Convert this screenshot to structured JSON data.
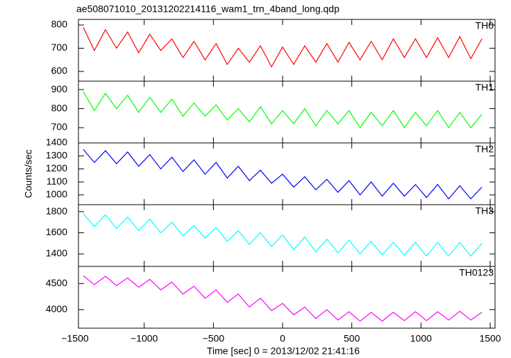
{
  "chart_data": [
    {
      "type": "line",
      "title": "ae508071010_20131202214116_wam1_trn_4band_long.qdp",
      "label": "TH0",
      "color": "#ff0000",
      "x": [
        -1440,
        -1360,
        -1280,
        -1200,
        -1120,
        -1040,
        -960,
        -880,
        -800,
        -720,
        -640,
        -560,
        -480,
        -400,
        -320,
        -240,
        -160,
        -80,
        0,
        80,
        160,
        240,
        320,
        400,
        480,
        560,
        640,
        720,
        800,
        880,
        960,
        1040,
        1120,
        1200,
        1280,
        1360,
        1440
      ],
      "values": [
        790,
        690,
        780,
        700,
        770,
        680,
        760,
        690,
        740,
        660,
        730,
        650,
        720,
        630,
        700,
        640,
        710,
        620,
        705,
        630,
        710,
        640,
        720,
        640,
        725,
        650,
        730,
        650,
        740,
        660,
        740,
        660,
        745,
        660,
        750,
        655,
        740
      ],
      "xlim": [
        -1475,
        1535
      ],
      "ylim": [
        558,
        824
      ],
      "yticks": [
        600,
        700,
        800
      ]
    },
    {
      "type": "line",
      "label": "TH1",
      "color": "#00ff00",
      "x": [
        -1440,
        -1360,
        -1280,
        -1200,
        -1120,
        -1040,
        -960,
        -880,
        -800,
        -720,
        -640,
        -560,
        -480,
        -400,
        -320,
        -240,
        -160,
        -80,
        0,
        80,
        160,
        240,
        320,
        400,
        480,
        560,
        640,
        720,
        800,
        880,
        960,
        1040,
        1120,
        1200,
        1280,
        1360,
        1440
      ],
      "values": [
        890,
        790,
        880,
        800,
        870,
        780,
        860,
        780,
        850,
        760,
        830,
        760,
        820,
        740,
        800,
        730,
        810,
        720,
        790,
        720,
        800,
        710,
        790,
        720,
        790,
        700,
        780,
        710,
        790,
        700,
        780,
        710,
        790,
        700,
        780,
        700,
        770
      ],
      "xlim": [
        -1475,
        1535
      ],
      "ylim": [
        620,
        944
      ],
      "yticks": [
        700,
        800,
        900
      ]
    },
    {
      "type": "line",
      "label": "TH2",
      "color": "#0000ff",
      "ylabel": "Counts/sec",
      "x": [
        -1440,
        -1360,
        -1280,
        -1200,
        -1120,
        -1040,
        -960,
        -880,
        -800,
        -720,
        -640,
        -560,
        -480,
        -400,
        -320,
        -240,
        -160,
        -80,
        0,
        80,
        160,
        240,
        320,
        400,
        480,
        560,
        640,
        720,
        800,
        880,
        960,
        1040,
        1120,
        1200,
        1280,
        1360,
        1440
      ],
      "values": [
        1350,
        1250,
        1340,
        1240,
        1330,
        1220,
        1310,
        1200,
        1290,
        1180,
        1270,
        1160,
        1250,
        1130,
        1220,
        1110,
        1190,
        1090,
        1160,
        1060,
        1140,
        1040,
        1120,
        1020,
        1110,
        1000,
        1100,
        990,
        1090,
        990,
        1080,
        980,
        1080,
        970,
        1070,
        970,
        1060
      ],
      "xlim": [
        -1475,
        1535
      ],
      "ylim": [
        925,
        1400
      ],
      "yticks": [
        1000,
        1100,
        1200,
        1300,
        1400
      ]
    },
    {
      "type": "line",
      "label": "TH3",
      "color": "#00ffff",
      "x": [
        -1440,
        -1360,
        -1280,
        -1200,
        -1120,
        -1040,
        -960,
        -880,
        -800,
        -720,
        -640,
        -560,
        -480,
        -400,
        -320,
        -240,
        -160,
        -80,
        0,
        80,
        160,
        240,
        320,
        400,
        480,
        560,
        640,
        720,
        800,
        880,
        960,
        1040,
        1120,
        1200,
        1280,
        1360,
        1440
      ],
      "values": [
        1780,
        1660,
        1770,
        1640,
        1750,
        1620,
        1730,
        1600,
        1700,
        1570,
        1670,
        1550,
        1650,
        1520,
        1620,
        1490,
        1600,
        1470,
        1580,
        1440,
        1560,
        1420,
        1540,
        1410,
        1530,
        1400,
        1520,
        1390,
        1510,
        1390,
        1510,
        1380,
        1510,
        1380,
        1510,
        1380,
        1500
      ],
      "xlim": [
        -1475,
        1535
      ],
      "ylim": [
        1282,
        1866
      ],
      "yticks": [
        1400,
        1600,
        1800
      ]
    },
    {
      "type": "line",
      "label": "TH0123",
      "color": "#ff00ff",
      "xlabel": "Time [sec] 0 = 2013/12/02 21:41:16",
      "x": [
        -1440,
        -1360,
        -1280,
        -1200,
        -1120,
        -1040,
        -960,
        -880,
        -800,
        -720,
        -640,
        -560,
        -480,
        -400,
        -320,
        -240,
        -160,
        -80,
        0,
        80,
        160,
        240,
        320,
        400,
        480,
        560,
        640,
        720,
        800,
        880,
        960,
        1040,
        1120,
        1200,
        1280,
        1360,
        1440
      ],
      "values": [
        4650,
        4480,
        4640,
        4460,
        4610,
        4430,
        4580,
        4380,
        4530,
        4300,
        4450,
        4220,
        4380,
        4140,
        4300,
        4050,
        4220,
        3980,
        4120,
        3900,
        4050,
        3830,
        4000,
        3800,
        3960,
        3780,
        3950,
        3780,
        3950,
        3790,
        3960,
        3790,
        3960,
        3800,
        3970,
        3800,
        3950
      ],
      "xlim": [
        -1475,
        1535
      ],
      "ylim": [
        3645,
        4829
      ],
      "yticks": [
        4000,
        4500
      ],
      "xticks": [
        {
          "value": -1500,
          "label": "−1500"
        },
        {
          "value": -1000,
          "label": "−1000"
        },
        {
          "value": -500,
          "label": "−500"
        },
        0,
        500,
        1000,
        1500
      ]
    }
  ]
}
